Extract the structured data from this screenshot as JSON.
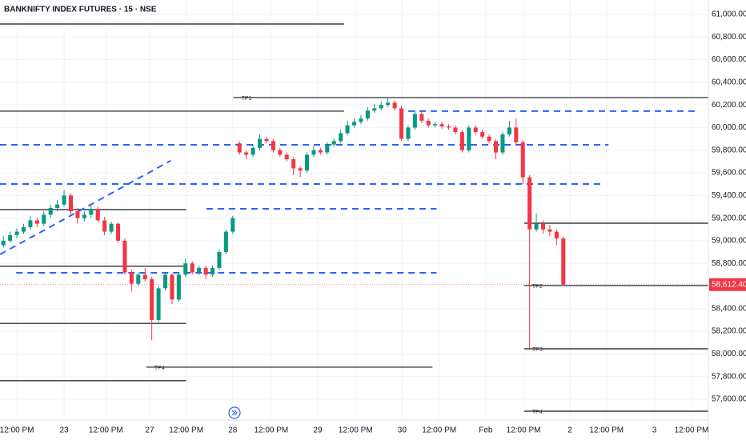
{
  "chart_data": {
    "type": "candlestick",
    "title": "BANKNIFTY INDEX FUTURES · 15 · NSE",
    "up_color": "#089981",
    "down_color": "#f23645",
    "grid": true,
    "ylim": [
      57416,
      61127
    ],
    "yticks": [
      {
        "value": 61000,
        "label": "61,000.00"
      },
      {
        "value": 60800,
        "label": "60,800.00"
      },
      {
        "value": 60600,
        "label": "60,600.00"
      },
      {
        "value": 60400,
        "label": "60,400.00"
      },
      {
        "value": 60200,
        "label": "60,200.00"
      },
      {
        "value": 60000,
        "label": "60,000.00"
      },
      {
        "value": 59800,
        "label": "59,800.00"
      },
      {
        "value": 59600,
        "label": "59,600.00"
      },
      {
        "value": 59400,
        "label": "59,400.00"
      },
      {
        "value": 59200,
        "label": "59,200.00"
      },
      {
        "value": 59000,
        "label": "59,000.00"
      },
      {
        "value": 58800,
        "label": "58,800.00"
      },
      {
        "value": 58600,
        "label": "58,600.00"
      },
      {
        "value": 58400,
        "label": "58,400.00"
      },
      {
        "value": 58200,
        "label": "58,200.00"
      },
      {
        "value": 58000,
        "label": "58,000.00"
      },
      {
        "value": 57800,
        "label": "57,800.00"
      },
      {
        "value": 57600,
        "label": "57,600.00"
      }
    ],
    "xlim": [
      -0.5,
      104.5
    ],
    "xticks": [
      {
        "value": 2,
        "label": "12:00 PM"
      },
      {
        "value": 9,
        "label": "23"
      },
      {
        "value": 15.2,
        "label": "12:00 PM"
      },
      {
        "value": 21.7,
        "label": "27"
      },
      {
        "value": 27.1,
        "label": "12:00 PM"
      },
      {
        "value": 34,
        "label": "28"
      },
      {
        "value": 39.7,
        "label": "12:00 PM"
      },
      {
        "value": 46.6,
        "label": "29"
      },
      {
        "value": 52.2,
        "label": "12:00 PM"
      },
      {
        "value": 59.1,
        "label": "30"
      },
      {
        "value": 64.6,
        "label": "12:00 PM"
      },
      {
        "value": 71.5,
        "label": "Feb"
      },
      {
        "value": 77.1,
        "label": "12:00 PM"
      },
      {
        "value": 84,
        "label": "2"
      },
      {
        "value": 89.4,
        "label": "12:00 PM"
      },
      {
        "value": 96.5,
        "label": "3"
      },
      {
        "value": 102,
        "label": "12:00 PM"
      }
    ],
    "x": [
      0,
      1,
      2,
      3,
      4,
      5,
      6,
      7,
      8,
      9,
      10,
      11,
      12,
      13,
      14,
      15,
      16,
      17,
      18,
      19,
      20,
      21,
      22,
      23,
      24,
      25,
      26,
      27,
      28,
      29,
      30,
      31,
      32,
      33,
      34,
      35,
      36,
      37,
      38,
      39,
      40,
      41,
      42,
      43,
      44,
      45,
      46,
      47,
      48,
      49,
      50,
      51,
      52,
      53,
      54,
      55,
      56,
      57,
      58,
      59,
      60,
      61,
      62,
      63,
      64,
      65,
      66,
      67,
      68,
      69,
      70,
      71,
      72,
      73,
      74,
      75,
      76,
      77,
      78,
      79,
      80,
      81,
      82,
      83
    ],
    "candles": [
      [
        58960,
        59040,
        58940,
        59000
      ],
      [
        59000,
        59080,
        58980,
        59050
      ],
      [
        59050,
        59110,
        59020,
        59080
      ],
      [
        59080,
        59150,
        59060,
        59120
      ],
      [
        59120,
        59220,
        59100,
        59180
      ],
      [
        59180,
        59200,
        59120,
        59150
      ],
      [
        59150,
        59260,
        59130,
        59230
      ],
      [
        59230,
        59320,
        59200,
        59290
      ],
      [
        59290,
        59360,
        59260,
        59320
      ],
      [
        59320,
        59450,
        59300,
        59400
      ],
      [
        59400,
        59420,
        59230,
        59260
      ],
      [
        59260,
        59290,
        59150,
        59200
      ],
      [
        59200,
        59260,
        59170,
        59230
      ],
      [
        59230,
        59310,
        59200,
        59280
      ],
      [
        59280,
        59300,
        59160,
        59180
      ],
      [
        59180,
        59210,
        59050,
        59080
      ],
      [
        59080,
        59170,
        59060,
        59150
      ],
      [
        59150,
        59160,
        58980,
        59000
      ],
      [
        59000,
        59020,
        58700,
        58720
      ],
      [
        58720,
        58750,
        58550,
        58620
      ],
      [
        58620,
        58720,
        58600,
        58700
      ],
      [
        58700,
        58760,
        58640,
        58660
      ],
      [
        58660,
        58680,
        58120,
        58300
      ],
      [
        58300,
        58600,
        58280,
        58580
      ],
      [
        58580,
        58720,
        58560,
        58700
      ],
      [
        58700,
        58710,
        58440,
        58480
      ],
      [
        58480,
        58720,
        58460,
        58700
      ],
      [
        58700,
        58840,
        58680,
        58800
      ],
      [
        58800,
        58820,
        58700,
        58720
      ],
      [
        58720,
        58780,
        58700,
        58760
      ],
      [
        58760,
        58780,
        58660,
        58700
      ],
      [
        58700,
        58780,
        58680,
        58760
      ],
      [
        58760,
        58920,
        58740,
        58900
      ],
      [
        58900,
        59100,
        58880,
        59080
      ],
      [
        59080,
        59220,
        59060,
        59200
      ],
      [
        59860,
        59880,
        59760,
        59780
      ],
      [
        59780,
        59800,
        59720,
        59760
      ],
      [
        59760,
        59840,
        59740,
        59820
      ],
      [
        59820,
        59940,
        59800,
        59900
      ],
      [
        59900,
        59920,
        59860,
        59880
      ],
      [
        59880,
        59900,
        59780,
        59800
      ],
      [
        59800,
        59820,
        59740,
        59760
      ],
      [
        59760,
        59780,
        59700,
        59720
      ],
      [
        59720,
        59740,
        59580,
        59640
      ],
      [
        59640,
        59660,
        59560,
        59620
      ],
      [
        59620,
        59780,
        59600,
        59760
      ],
      [
        59760,
        59840,
        59740,
        59800
      ],
      [
        59800,
        59820,
        59760,
        59780
      ],
      [
        59780,
        59870,
        59760,
        59850
      ],
      [
        59850,
        59900,
        59830,
        59880
      ],
      [
        59880,
        59980,
        59860,
        59950
      ],
      [
        59950,
        60060,
        59930,
        60020
      ],
      [
        60020,
        60080,
        60000,
        60050
      ],
      [
        60050,
        60110,
        60030,
        60080
      ],
      [
        60080,
        60180,
        60060,
        60150
      ],
      [
        60150,
        60210,
        60130,
        60170
      ],
      [
        60170,
        60230,
        60150,
        60200
      ],
      [
        60200,
        60260,
        60180,
        60220
      ],
      [
        60220,
        60240,
        60150,
        60170
      ],
      [
        60170,
        60190,
        59880,
        59900
      ],
      [
        59900,
        60020,
        59880,
        60000
      ],
      [
        60000,
        60150,
        59980,
        60120
      ],
      [
        60120,
        60140,
        60040,
        60060
      ],
      [
        60060,
        60080,
        60000,
        60020
      ],
      [
        60020,
        60050,
        60000,
        60030
      ],
      [
        60030,
        60050,
        59990,
        60010
      ],
      [
        60010,
        60030,
        59980,
        60000
      ],
      [
        60000,
        60020,
        59940,
        59960
      ],
      [
        59960,
        59980,
        59780,
        59800
      ],
      [
        59800,
        60020,
        59780,
        60000
      ],
      [
        60000,
        60020,
        59940,
        59960
      ],
      [
        59960,
        59980,
        59900,
        59920
      ],
      [
        59920,
        59940,
        59860,
        59880
      ],
      [
        59880,
        59900,
        59720,
        59780
      ],
      [
        59780,
        59960,
        59760,
        59940
      ],
      [
        59940,
        60060,
        59920,
        60000
      ],
      [
        60000,
        60080,
        59850,
        59870
      ],
      [
        59870,
        59890,
        59500,
        59560
      ],
      [
        59560,
        59580,
        58050,
        59100
      ],
      [
        59100,
        59240,
        59080,
        59150
      ],
      [
        59150,
        59180,
        59060,
        59100
      ],
      [
        59100,
        59140,
        59040,
        59080
      ],
      [
        59080,
        59100,
        58960,
        59020
      ],
      [
        59020,
        59040,
        58600,
        58612.4
      ]
    ],
    "last_price": {
      "value": 58612.4,
      "label": "58,612.40"
    },
    "levels": [
      {
        "price": 60915,
        "from": -0.5,
        "to": 50.5,
        "style": "solid",
        "color": "#131722"
      },
      {
        "price": 60145,
        "from": -0.5,
        "to": 50.5,
        "style": "solid",
        "color": "#131722"
      },
      {
        "price": 60265,
        "from": 34.1,
        "to": 104.5,
        "style": "solid",
        "color": "#131722",
        "label": "TP1"
      },
      {
        "price": 59275,
        "from": -0.5,
        "to": 27.1,
        "style": "solid",
        "color": "#131722"
      },
      {
        "price": 59155,
        "from": 77.2,
        "to": 104.5,
        "style": "solid",
        "color": "#131722"
      },
      {
        "price": 58775,
        "from": -0.5,
        "to": 27.1,
        "style": "solid",
        "color": "#131722"
      },
      {
        "price": 58604,
        "from": 77.2,
        "to": 104.5,
        "style": "solid",
        "color": "#131722",
        "label": "TP2"
      },
      {
        "price": 58270,
        "from": -0.5,
        "to": 27.1,
        "style": "solid",
        "color": "#131722"
      },
      {
        "price": 58045,
        "from": 77.2,
        "to": 104.5,
        "style": "solid",
        "color": "#131722",
        "label": "TP3"
      },
      {
        "price": 57883,
        "from": 21.2,
        "to": 63.6,
        "style": "solid",
        "color": "#131722",
        "label": "TP4"
      },
      {
        "price": 57763,
        "from": -0.5,
        "to": 27.1,
        "style": "solid",
        "color": "#131722"
      },
      {
        "price": 57494,
        "from": 77.2,
        "to": 104.5,
        "style": "solid",
        "color": "#131722",
        "label": "TP4"
      },
      {
        "price": 60145,
        "from": 60,
        "to": 102.7,
        "style": "dashed",
        "color": "#2962ff"
      },
      {
        "price": 59848,
        "from": -0.5,
        "to": 89.7,
        "style": "dashed",
        "color": "#2962ff"
      },
      {
        "price": 59501,
        "from": -0.5,
        "to": 88.5,
        "style": "dashed",
        "color": "#2962ff"
      },
      {
        "price": 59282,
        "from": 30.1,
        "to": 64.2,
        "style": "dashed",
        "color": "#2962ff"
      },
      {
        "price": 58717,
        "from": 1.9,
        "to": 64.2,
        "style": "dashed",
        "color": "#2962ff"
      }
    ],
    "trendline": {
      "x": [
        -0.5,
        24.8
      ],
      "values": [
        58879,
        59707
      ],
      "color": "#2962ff"
    }
  }
}
